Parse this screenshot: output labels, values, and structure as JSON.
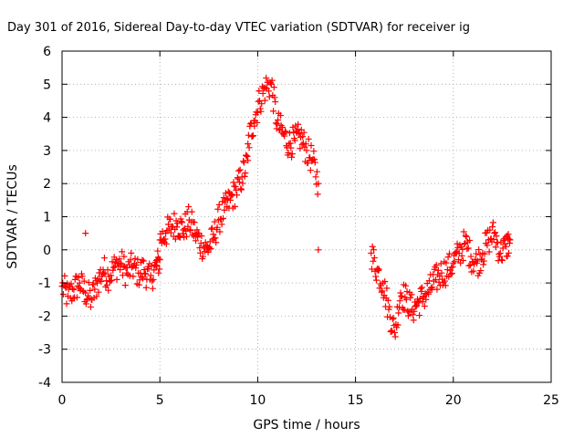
{
  "chart_data": {
    "type": "scatter",
    "title": "Day 301 of 2016, Sidereal Day-to-day VTEC variation (SDTVAR) for receiver ig",
    "xlabel": "GPS time / hours",
    "ylabel": "SDTVAR / TECUs",
    "xlim": [
      0,
      25
    ],
    "ylim": [
      -4,
      6
    ],
    "x_ticks": [
      0,
      5,
      10,
      15,
      20,
      25
    ],
    "y_ticks": [
      -4,
      -3,
      -2,
      -1,
      0,
      1,
      2,
      3,
      4,
      5,
      6
    ],
    "grid": true,
    "legend": "none",
    "marker": "plus",
    "series_color": "#ff0000",
    "grid_color": "#a0a0a0",
    "segments": [
      {
        "x": [
          0.0,
          0.3,
          0.6,
          0.9,
          1.2,
          1.5,
          1.8,
          2.1,
          2.4,
          2.7,
          3.0,
          3.3,
          3.6,
          3.9,
          4.2,
          4.5,
          4.8,
          5.0
        ],
        "y": [
          -1.1,
          -1.4,
          -1.2,
          -1.0,
          -1.3,
          -1.5,
          -1.0,
          -0.6,
          -0.8,
          -0.5,
          -0.4,
          -0.7,
          -0.5,
          -0.7,
          -0.6,
          -0.9,
          -0.5,
          -0.3
        ]
      },
      {
        "x": [
          5.0,
          5.3,
          5.6,
          5.9,
          6.2,
          6.5,
          6.8,
          7.1,
          7.4,
          7.7,
          8.0,
          8.3,
          8.6,
          8.9,
          9.2,
          9.5
        ],
        "y": [
          0.3,
          0.5,
          0.7,
          0.8,
          0.6,
          0.9,
          0.5,
          0.2,
          0.0,
          0.3,
          0.9,
          1.2,
          1.5,
          1.8,
          2.2,
          2.7
        ]
      },
      {
        "x": [
          9.5,
          9.8,
          10.1,
          10.4,
          10.7,
          11.0,
          11.3,
          11.6,
          11.9,
          12.2,
          12.5,
          12.8,
          13.1
        ],
        "y": [
          3.2,
          3.9,
          4.5,
          4.9,
          5.0,
          3.8,
          3.5,
          3.2,
          3.3,
          3.4,
          3.0,
          2.7,
          2.0
        ]
      },
      {
        "x": [
          15.8,
          16.1,
          16.4,
          16.7,
          17.0,
          17.3,
          17.6,
          17.9,
          18.2,
          18.5,
          18.8,
          19.1,
          19.4,
          19.7,
          20.0,
          20.3,
          20.6,
          20.9,
          21.2,
          21.5,
          21.8,
          22.1,
          22.4,
          22.7,
          22.9
        ],
        "y": [
          -0.1,
          -0.6,
          -1.0,
          -1.8,
          -2.5,
          -1.3,
          -1.5,
          -1.8,
          -1.6,
          -1.4,
          -1.2,
          -0.9,
          -0.7,
          -0.6,
          -0.4,
          -0.1,
          0.2,
          -0.2,
          -0.4,
          -0.1,
          0.3,
          0.5,
          -0.1,
          0.1,
          0.3
        ]
      }
    ],
    "isolated_points": {
      "x": [
        1.2,
        13.1
      ],
      "y": [
        0.5,
        0.0
      ]
    }
  }
}
